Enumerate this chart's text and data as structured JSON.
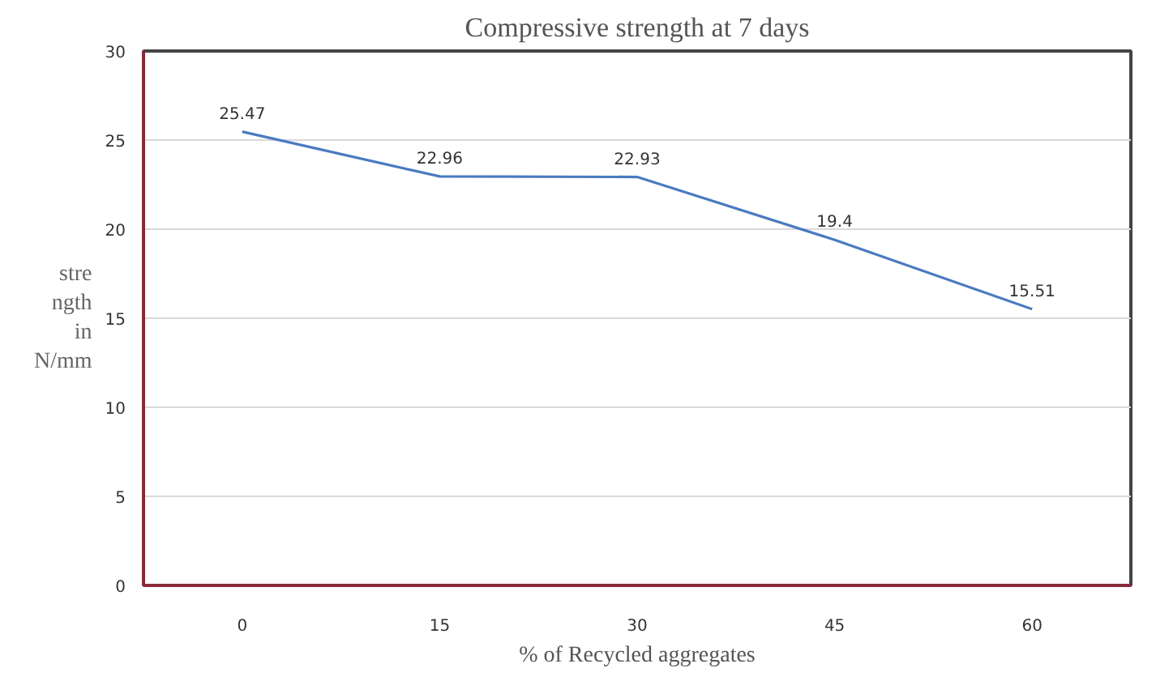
{
  "chart_data": {
    "type": "line",
    "title": "Compressive strength at 7 days",
    "xlabel": "% of Recycled aggregates",
    "ylabel": "strength in N/mm",
    "categories": [
      "0",
      "15",
      "30",
      "45",
      "60"
    ],
    "series": [
      {
        "color": "#4a7ac0",
        "values": [
          25.47,
          22.96,
          22.93,
          19.4,
          15.51
        ]
      }
    ],
    "ylim": [
      0,
      30
    ],
    "yticks": [
      0,
      5,
      10,
      15,
      20,
      25,
      30
    ],
    "grid": "y",
    "data_labels": true,
    "line_style": "solid"
  }
}
